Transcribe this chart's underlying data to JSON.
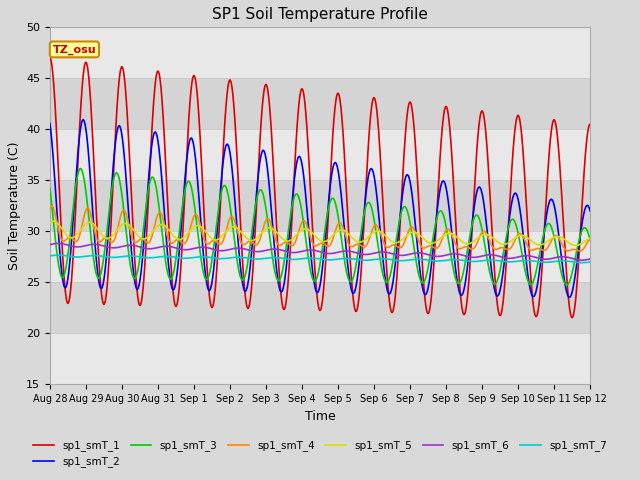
{
  "title": "SP1 Soil Temperature Profile",
  "xlabel": "Time",
  "ylabel": "Soil Temperature (C)",
  "ylim": [
    15,
    50
  ],
  "xlim": [
    0,
    15
  ],
  "fig_bg_color": "#d9d9d9",
  "plot_bg_color": "#d9d9d9",
  "annotation_text": "TZ_osu",
  "annotation_color": "#cc0000",
  "annotation_bg": "#ffff99",
  "annotation_border": "#cc8800",
  "legend_entries": [
    "sp1_smT_1",
    "sp1_smT_2",
    "sp1_smT_3",
    "sp1_smT_4",
    "sp1_smT_5",
    "sp1_smT_6",
    "sp1_smT_7"
  ],
  "line_colors": [
    "#dd0000",
    "#0000ee",
    "#00cc00",
    "#ff8800",
    "#dddd00",
    "#9933cc",
    "#00cccc"
  ],
  "line_widths": [
    1.2,
    1.2,
    1.2,
    1.2,
    1.2,
    1.2,
    1.2
  ],
  "tick_labels": [
    "Aug 28",
    "Aug 29",
    "Aug 30",
    "Aug 31",
    "Sep 1",
    "Sep 2",
    "Sep 3",
    "Sep 4",
    "Sep 5",
    "Sep 6",
    "Sep 7",
    "Sep 8",
    "Sep 9",
    "Sep 10",
    "Sep 11",
    "Sep 12"
  ],
  "yticks": [
    15,
    20,
    25,
    30,
    35,
    40,
    45,
    50
  ],
  "title_fontsize": 11,
  "tick_fontsize": 7,
  "label_fontsize": 9
}
